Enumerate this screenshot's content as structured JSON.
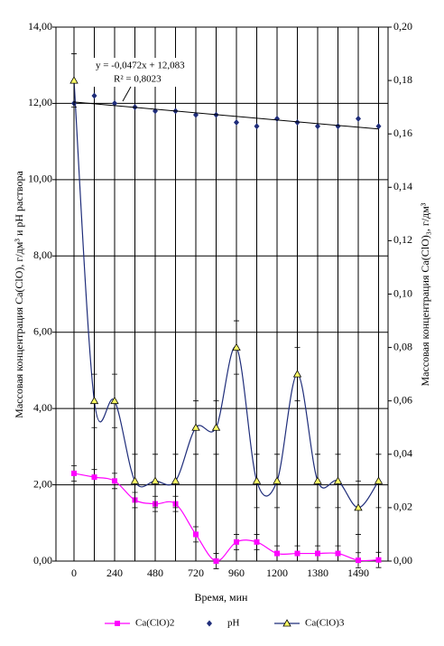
{
  "chart_data": {
    "type": "line",
    "xlabel": "Время, мин",
    "ylabel": "Массовая концентрация Ca(ClO), г/дм³  и  pH раствора",
    "y2label": "Массовая концентрация Ca(ClO)₃, г/дм³",
    "categories": [
      "0",
      null,
      "240",
      null,
      "480",
      null,
      "720",
      null,
      "960",
      null,
      "1200",
      null,
      "1380",
      null,
      "1490",
      null
    ],
    "ylim": [
      0,
      14
    ],
    "yticks": [
      {
        "value": 0,
        "label": "0,00"
      },
      {
        "value": 2,
        "label": "2,00"
      },
      {
        "value": 4,
        "label": "4,00"
      },
      {
        "value": 6,
        "label": "6,00"
      },
      {
        "value": 8,
        "label": "8,00"
      },
      {
        "value": 10,
        "label": "10,00"
      },
      {
        "value": 12,
        "label": "12,00"
      },
      {
        "value": 14,
        "label": "14,00"
      }
    ],
    "y2lim": [
      0,
      0.2
    ],
    "y2ticks": [
      {
        "value": 0,
        "label": "0,00"
      },
      {
        "value": 0.02,
        "label": "0,02"
      },
      {
        "value": 0.04,
        "label": "0,04"
      },
      {
        "value": 0.06,
        "label": "0,06"
      },
      {
        "value": 0.08,
        "label": "0,08"
      },
      {
        "value": 0.1,
        "label": "0,10"
      },
      {
        "value": 0.12,
        "label": "0,12"
      },
      {
        "value": 0.14,
        "label": "0,14"
      },
      {
        "value": 0.16,
        "label": "0,16"
      },
      {
        "value": 0.18,
        "label": "0,18"
      },
      {
        "value": 0.2,
        "label": "0,20"
      }
    ],
    "grid": true,
    "series": [
      {
        "name": "Ca(ClO)2",
        "color": "#ff00ff",
        "marker": "square",
        "smooth": true,
        "values": [
          2.3,
          2.2,
          2.1,
          1.6,
          1.5,
          1.5,
          0.7,
          0.0,
          0.5,
          0.5,
          0.2,
          0.2,
          0.2,
          0.2,
          0.02,
          0.03
        ],
        "errors": [
          0.2,
          0.2,
          0.2,
          0.2,
          0.2,
          0.2,
          0.2,
          0.2,
          0.2,
          0.2,
          0.2,
          0.2,
          0.2,
          0.2,
          0.2,
          0.2
        ]
      },
      {
        "name": "pH",
        "color": "#1f2d7a",
        "marker": "diamond",
        "smooth": false,
        "values": [
          12.0,
          12.2,
          12.0,
          11.9,
          11.8,
          11.8,
          11.7,
          11.7,
          11.5,
          11.4,
          11.6,
          11.5,
          11.4,
          11.4,
          11.6,
          11.4
        ]
      },
      {
        "name": "Ca(ClO)3",
        "color": "#1f2d7a",
        "marker": "triangle",
        "smooth": true,
        "axis": "y2",
        "values": [
          0.18,
          0.06,
          0.06,
          0.03,
          0.03,
          0.03,
          0.05,
          0.05,
          0.08,
          0.03,
          0.03,
          0.07,
          0.03,
          0.03,
          0.02,
          0.03
        ],
        "errors": [
          0.01,
          0.01,
          0.01,
          0.01,
          0.01,
          0.01,
          0.01,
          0.01,
          0.01,
          0.01,
          0.01,
          0.01,
          0.01,
          0.01,
          0.01,
          0.01
        ]
      }
    ],
    "trendline": {
      "series": 1,
      "slope": -0.0472,
      "intercept": 12.083,
      "equation": "y = -0,0472x + 12,083",
      "r2": "R² = 0,8023"
    }
  }
}
